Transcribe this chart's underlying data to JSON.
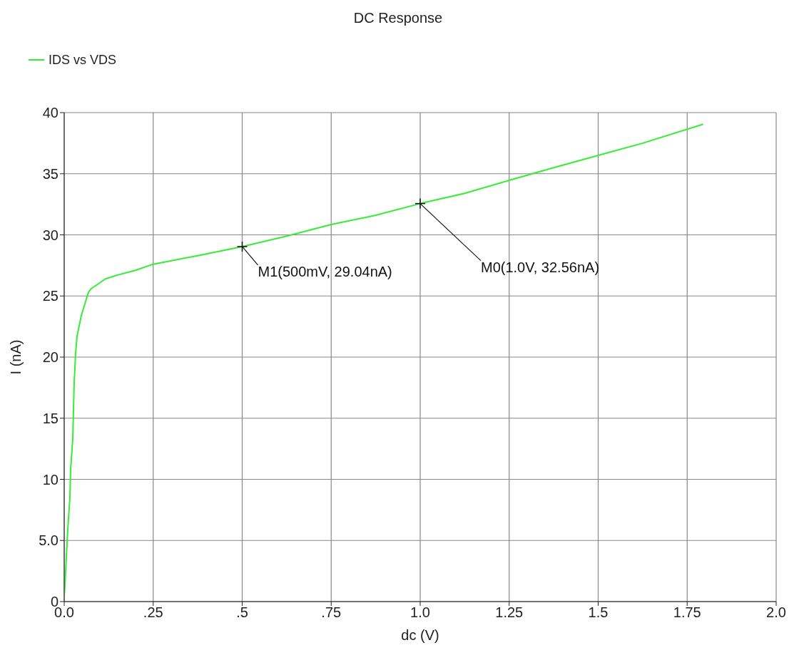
{
  "chart_data": {
    "type": "line",
    "title": "DC Response",
    "xlabel": "dc (V)",
    "ylabel": "I (nA)",
    "x": [
      0,
      0.002,
      0.006,
      0.01,
      0.016,
      0.018,
      0.024,
      0.026,
      0.028,
      0.032,
      0.036,
      0.048,
      0.068,
      0.076,
      0.116,
      0.148,
      0.2,
      0.25,
      0.375,
      0.5,
      0.625,
      0.75,
      0.875,
      1.0,
      1.125,
      1.25,
      1.375,
      1.5,
      1.625,
      1.795
    ],
    "series": [
      {
        "name": "IDS vs VDS",
        "color": "#33ee33",
        "values": [
          0.5,
          1.3,
          3.6,
          5.9,
          8.5,
          10.8,
          13.3,
          15.6,
          17.9,
          20.3,
          21.7,
          23.4,
          25.3,
          25.6,
          26.4,
          26.7,
          27.1,
          27.6,
          28.3,
          29.04,
          29.9,
          30.85,
          31.6,
          32.56,
          33.4,
          34.46,
          35.5,
          36.5,
          37.5,
          39.05
        ]
      }
    ],
    "xlim": [
      0,
      2.0
    ],
    "xticks": [
      {
        "value": 0,
        "label": "0.0"
      },
      {
        "value": 0.25,
        "label": ".25"
      },
      {
        "value": 0.5,
        "label": ".5"
      },
      {
        "value": 0.75,
        "label": ".75"
      },
      {
        "value": 1.0,
        "label": "1.0"
      },
      1.25,
      1.5,
      1.75,
      {
        "value": 2.0,
        "label": "2.0"
      }
    ],
    "ylim": [
      0,
      40
    ],
    "yticks": [
      0,
      {
        "value": 5,
        "label": "5.0"
      },
      10,
      15,
      20,
      25,
      30,
      35,
      40
    ],
    "grid": true,
    "legend": "top left",
    "marker": "none",
    "line_style": "solid",
    "annotations": [
      {
        "text": "M1(500mV, 29.04nA)",
        "x": 0.5,
        "y": 29.04
      },
      {
        "text": "M0(1.0V, 32.56nA)",
        "x": 1.0,
        "y": 32.56
      }
    ]
  }
}
